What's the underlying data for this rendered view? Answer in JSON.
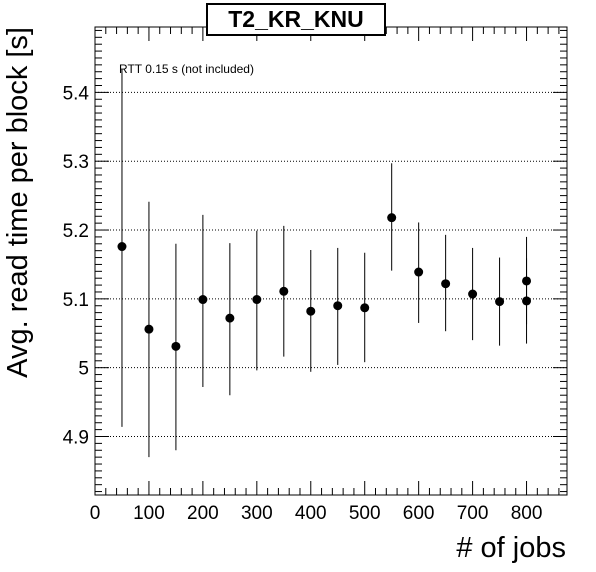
{
  "chart_data": {
    "type": "scatter",
    "title": "T2_KR_KNU",
    "xlabel": "# of jobs",
    "ylabel": "Avg. read time per block [s]",
    "annotation": "RTT 0.15 s (not included)",
    "xlim": [
      0,
      875
    ],
    "ylim": [
      4.815,
      5.495
    ],
    "x_ticks": [
      0,
      100,
      200,
      300,
      400,
      500,
      600,
      700,
      800
    ],
    "y_ticks": [
      4.9,
      5,
      5.1,
      5.2,
      5.3,
      5.4
    ],
    "y_tick_labels": [
      "4.9",
      "5",
      "5.1",
      "5.2",
      "5.3",
      "5.4"
    ],
    "grid": "horizontal dotted",
    "series": [
      {
        "points": [
          {
            "x": 50,
            "y": 5.176,
            "err_low": 4.914,
            "err_high": 5.433
          },
          {
            "x": 100,
            "y": 5.056,
            "err_low": 4.87,
            "err_high": 5.241
          },
          {
            "x": 150,
            "y": 5.031,
            "err_low": 4.88,
            "err_high": 5.18
          },
          {
            "x": 200,
            "y": 5.099,
            "err_low": 4.972,
            "err_high": 5.222
          },
          {
            "x": 250,
            "y": 5.072,
            "err_low": 4.96,
            "err_high": 5.181
          },
          {
            "x": 300,
            "y": 5.099,
            "err_low": 4.996,
            "err_high": 5.199
          },
          {
            "x": 350,
            "y": 5.111,
            "err_low": 5.016,
            "err_high": 5.206
          },
          {
            "x": 400,
            "y": 5.082,
            "err_low": 4.994,
            "err_high": 5.171
          },
          {
            "x": 450,
            "y": 5.09,
            "err_low": 5.004,
            "err_high": 5.174
          },
          {
            "x": 500,
            "y": 5.087,
            "err_low": 5.008,
            "err_high": 5.167
          },
          {
            "x": 550,
            "y": 5.218,
            "err_low": 5.141,
            "err_high": 5.297
          },
          {
            "x": 600,
            "y": 5.139,
            "err_low": 5.065,
            "err_high": 5.211
          },
          {
            "x": 650,
            "y": 5.122,
            "err_low": 5.053,
            "err_high": 5.193
          },
          {
            "x": 700,
            "y": 5.107,
            "err_low": 5.04,
            "err_high": 5.174
          },
          {
            "x": 750,
            "y": 5.096,
            "err_low": 5.032,
            "err_high": 5.16
          },
          {
            "x": 800,
            "y": 5.126,
            "err_low": 5.063,
            "err_high": 5.19
          },
          {
            "x": 800,
            "y": 5.097,
            "err_low": 5.035,
            "err_high": 5.159
          }
        ]
      }
    ]
  }
}
